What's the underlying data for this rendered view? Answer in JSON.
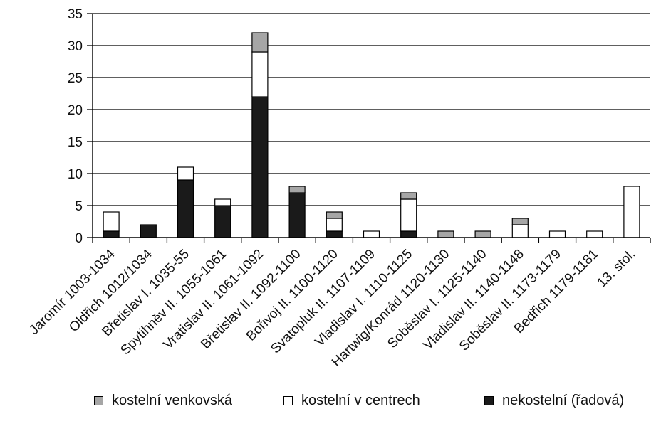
{
  "chart_data": {
    "type": "bar",
    "stacked": true,
    "title": "",
    "xlabel": "",
    "ylabel": "",
    "ylim": [
      0,
      35
    ],
    "yticks": [
      0,
      5,
      10,
      15,
      20,
      25,
      30,
      35
    ],
    "grid": true,
    "legend_position": "bottom",
    "categories": [
      "Jaromír 1003-1034",
      "Oldřich 1012/1034",
      "Břetislav I. 1035-55",
      "Spytihněv II. 1055-1061",
      "Vratislav II. 1061-1092",
      "Břetislav II. 1092-1100",
      "Bořivoj II. 1100-1120",
      "Svatopluk II. 1107-1109",
      "Vladislav I. 1110-1125",
      "Hartwig/Konrád 1120-1130",
      "Soběslav I. 1125-1140",
      "Vladislav II. 1140-1148",
      "Soběslav II. 1173-1179",
      "Bedřich 1179-1181",
      "13. stol."
    ],
    "series": [
      {
        "name": "nekostelní (řadová)",
        "color": "#1a1a1a",
        "values": [
          1,
          2,
          9,
          5,
          22,
          7,
          1,
          0,
          1,
          0,
          0,
          0,
          0,
          0,
          0
        ]
      },
      {
        "name": "kostelní v centrech",
        "color": "#ffffff",
        "values": [
          3,
          0,
          2,
          1,
          7,
          0,
          2,
          1,
          5,
          0,
          0,
          2,
          1,
          1,
          8
        ]
      },
      {
        "name": "kostelní venkovská",
        "color": "#a6a6a6",
        "values": [
          0,
          0,
          0,
          0,
          3,
          1,
          1,
          0,
          1,
          1,
          1,
          1,
          0,
          0,
          0
        ]
      }
    ],
    "legend_order": [
      "kostelní venkovská",
      "kostelní v centrech",
      "nekostelní (řadová)"
    ]
  }
}
